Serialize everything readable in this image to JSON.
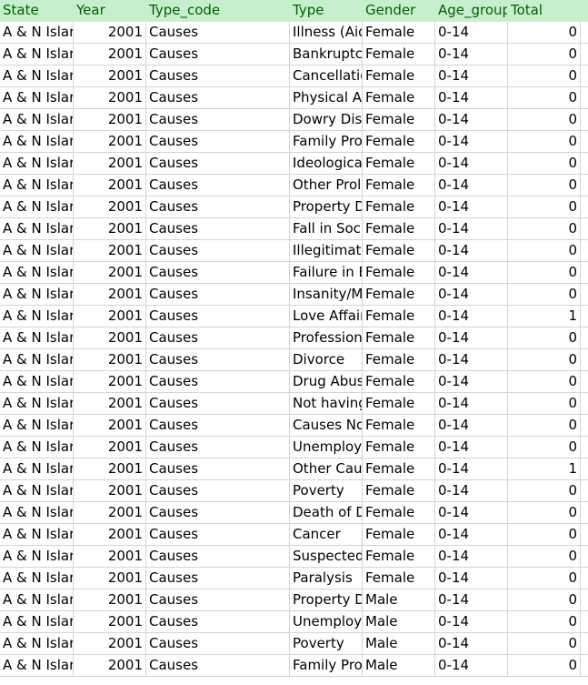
{
  "header": {
    "state": "State",
    "year": "Year",
    "type_code": "Type_code",
    "type": "Type",
    "gender": "Gender",
    "age_group": "Age_group",
    "total": "Total"
  },
  "rows": [
    {
      "state": "A & N Islar",
      "year": "2001",
      "type_code": "Causes",
      "type": "Illness (Aid",
      "gender": "Female",
      "age_group": "0-14",
      "total": "0"
    },
    {
      "state": "A & N Islar",
      "year": "2001",
      "type_code": "Causes",
      "type": "Bankruptcy",
      "gender": "Female",
      "age_group": "0-14",
      "total": "0"
    },
    {
      "state": "A & N Islar",
      "year": "2001",
      "type_code": "Causes",
      "type": "Cancellatio",
      "gender": "Female",
      "age_group": "0-14",
      "total": "0"
    },
    {
      "state": "A & N Islar",
      "year": "2001",
      "type_code": "Causes",
      "type": "Physical Ab",
      "gender": "Female",
      "age_group": "0-14",
      "total": "0"
    },
    {
      "state": "A & N Islar",
      "year": "2001",
      "type_code": "Causes",
      "type": "Dowry Disp",
      "gender": "Female",
      "age_group": "0-14",
      "total": "0"
    },
    {
      "state": "A & N Islar",
      "year": "2001",
      "type_code": "Causes",
      "type": "Family Pro",
      "gender": "Female",
      "age_group": "0-14",
      "total": "0"
    },
    {
      "state": "A & N Islar",
      "year": "2001",
      "type_code": "Causes",
      "type": "Ideologica",
      "gender": "Female",
      "age_group": "0-14",
      "total": "0"
    },
    {
      "state": "A & N Islar",
      "year": "2001",
      "type_code": "Causes",
      "type": "Other Prol",
      "gender": "Female",
      "age_group": "0-14",
      "total": "0"
    },
    {
      "state": "A & N Islar",
      "year": "2001",
      "type_code": "Causes",
      "type": "Property D",
      "gender": "Female",
      "age_group": "0-14",
      "total": "0"
    },
    {
      "state": "A & N Islar",
      "year": "2001",
      "type_code": "Causes",
      "type": "Fall in Soci",
      "gender": "Female",
      "age_group": "0-14",
      "total": "0"
    },
    {
      "state": "A & N Islar",
      "year": "2001",
      "type_code": "Causes",
      "type": "Illegitimate",
      "gender": "Female",
      "age_group": "0-14",
      "total": "0"
    },
    {
      "state": "A & N Islar",
      "year": "2001",
      "type_code": "Causes",
      "type": "Failure in E",
      "gender": "Female",
      "age_group": "0-14",
      "total": "0"
    },
    {
      "state": "A & N Islar",
      "year": "2001",
      "type_code": "Causes",
      "type": "Insanity/M",
      "gender": "Female",
      "age_group": "0-14",
      "total": "0"
    },
    {
      "state": "A & N Islar",
      "year": "2001",
      "type_code": "Causes",
      "type": "Love Affair",
      "gender": "Female",
      "age_group": "0-14",
      "total": "1"
    },
    {
      "state": "A & N Islar",
      "year": "2001",
      "type_code": "Causes",
      "type": "Profession",
      "gender": "Female",
      "age_group": "0-14",
      "total": "0"
    },
    {
      "state": "A & N Islar",
      "year": "2001",
      "type_code": "Causes",
      "type": "Divorce",
      "gender": "Female",
      "age_group": "0-14",
      "total": "0"
    },
    {
      "state": "A & N Islar",
      "year": "2001",
      "type_code": "Causes",
      "type": "Drug Abuse",
      "gender": "Female",
      "age_group": "0-14",
      "total": "0"
    },
    {
      "state": "A & N Islar",
      "year": "2001",
      "type_code": "Causes",
      "type": "Not having",
      "gender": "Female",
      "age_group": "0-14",
      "total": "0"
    },
    {
      "state": "A & N Islar",
      "year": "2001",
      "type_code": "Causes",
      "type": "Causes No",
      "gender": "Female",
      "age_group": "0-14",
      "total": "0"
    },
    {
      "state": "A & N Islar",
      "year": "2001",
      "type_code": "Causes",
      "type": "Unemploy",
      "gender": "Female",
      "age_group": "0-14",
      "total": "0"
    },
    {
      "state": "A & N Islar",
      "year": "2001",
      "type_code": "Causes",
      "type": "Other Caus",
      "gender": "Female",
      "age_group": "0-14",
      "total": "1"
    },
    {
      "state": "A & N Islar",
      "year": "2001",
      "type_code": "Causes",
      "type": "Poverty",
      "gender": "Female",
      "age_group": "0-14",
      "total": "0"
    },
    {
      "state": "A & N Islar",
      "year": "2001",
      "type_code": "Causes",
      "type": "Death of D",
      "gender": "Female",
      "age_group": "0-14",
      "total": "0"
    },
    {
      "state": "A & N Islar",
      "year": "2001",
      "type_code": "Causes",
      "type": "Cancer",
      "gender": "Female",
      "age_group": "0-14",
      "total": "0"
    },
    {
      "state": "A & N Islar",
      "year": "2001",
      "type_code": "Causes",
      "type": "Suspected,",
      "gender": "Female",
      "age_group": "0-14",
      "total": "0"
    },
    {
      "state": "A & N Islar",
      "year": "2001",
      "type_code": "Causes",
      "type": "Paralysis",
      "gender": "Female",
      "age_group": "0-14",
      "total": "0"
    },
    {
      "state": "A & N Islar",
      "year": "2001",
      "type_code": "Causes",
      "type": "Property D",
      "gender": "Male",
      "age_group": "0-14",
      "total": "0"
    },
    {
      "state": "A & N Islar",
      "year": "2001",
      "type_code": "Causes",
      "type": "Unemploy",
      "gender": "Male",
      "age_group": "0-14",
      "total": "0"
    },
    {
      "state": "A & N Islar",
      "year": "2001",
      "type_code": "Causes",
      "type": "Poverty",
      "gender": "Male",
      "age_group": "0-14",
      "total": "0"
    },
    {
      "state": "A & N Islar",
      "year": "2001",
      "type_code": "Causes",
      "type": "Family Pro",
      "gender": "Male",
      "age_group": "0-14",
      "total": "0"
    }
  ]
}
